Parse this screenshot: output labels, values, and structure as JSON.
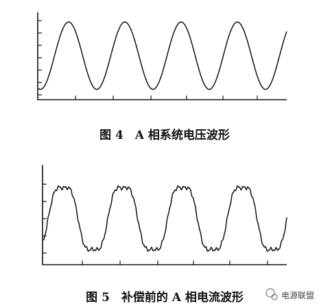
{
  "figures": [
    {
      "caption": "图 4　A 相系统电压波形"
    },
    {
      "caption": "图 5　补偿前的 A 相电流波形"
    }
  ],
  "watermark": "电源联盟"
}
